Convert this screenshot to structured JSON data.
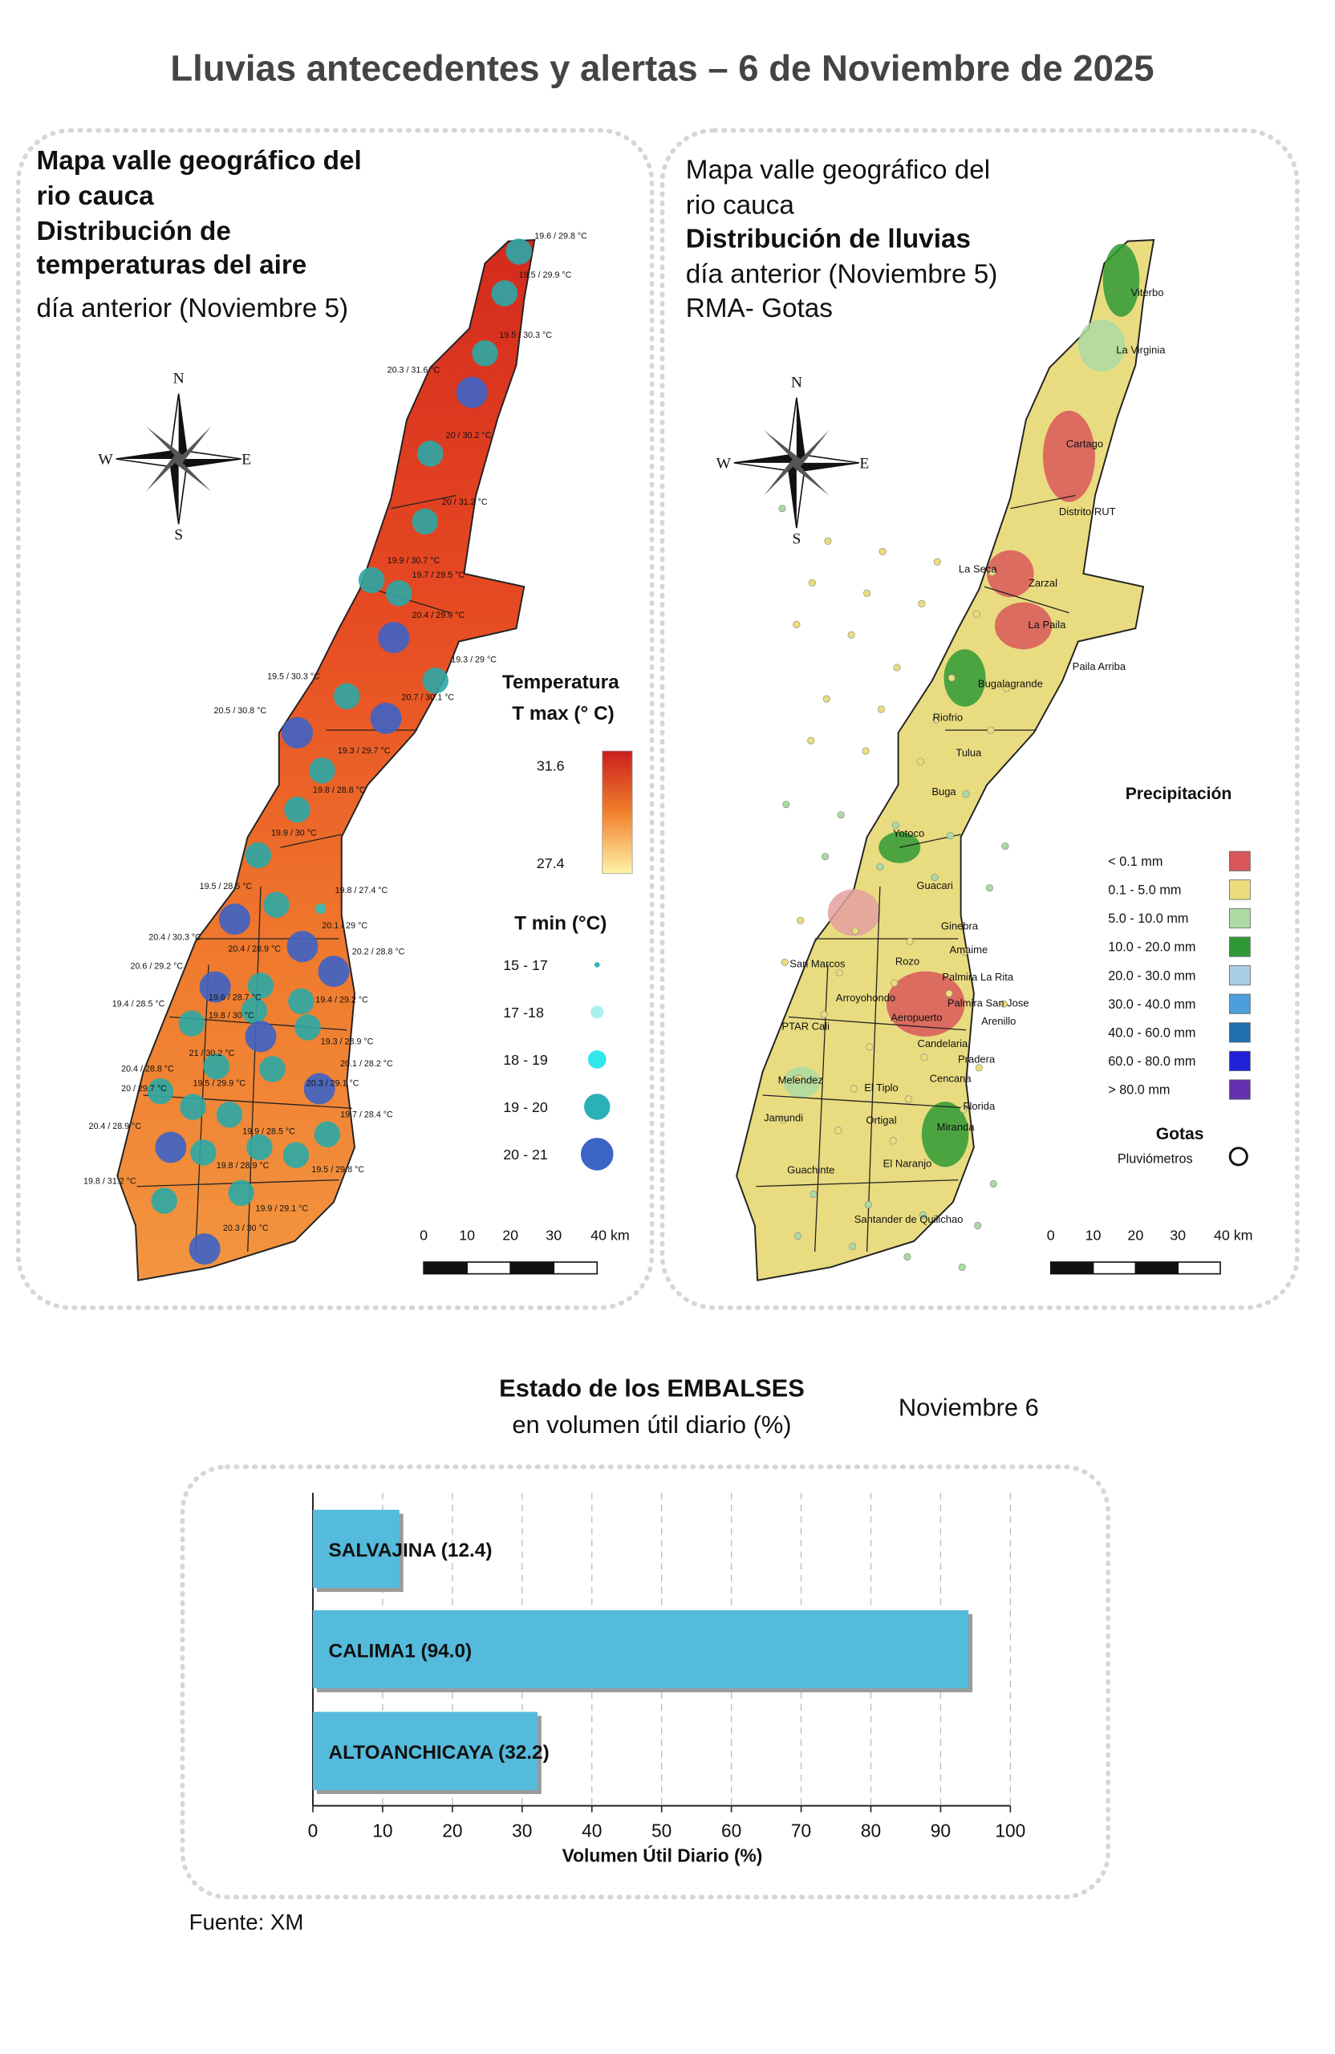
{
  "title": "Lluvias antecedentes y alertas – 6 de Noviembre de 2025",
  "compass": [
    "N",
    "W",
    "E",
    "S"
  ],
  "temperature_map": {
    "heading": [
      "Mapa valle geográfico del",
      "rio cauca",
      "Distribución de",
      "temperaturas del aire"
    ],
    "subheading": "día anterior (Noviembre 5)",
    "tmax_legend": {
      "title": [
        "Temperatura",
        "T max (° C)"
      ],
      "max": 31.6,
      "min": 27.4
    },
    "tmin_legend": {
      "title": "T min (°C)",
      "classes": [
        "15 - 17",
        "17 -18",
        "18 - 19",
        "19 - 20",
        "20 - 21"
      ]
    },
    "scale": {
      "ticks": [
        0,
        10,
        20,
        30
      ],
      "end_label": "40 km"
    },
    "stations": [
      "19.6 / 29.8 °C",
      "19.5 / 29.9 °C",
      "19.5 / 30.3 °C",
      "20.3 / 31.6 °C",
      "20 / 30.2 °C",
      "20 / 31.2 °C",
      "19.9 / 30.7 °C",
      "19.7 / 29.5 °C",
      "20.4 / 29.9 °C",
      "19.3 / 29 °C",
      "19.5 / 30.3 °C",
      "20.7 / 30.1 °C",
      "20.5 / 30.8 °C",
      "19.3 / 29.7 °C",
      "19.8 / 28.8 °C",
      "19.9 / 30 °C",
      "19.5 / 28.5 °C",
      "19.8 / 27.4 °C",
      "20.1 / 29 °C",
      "20.4 / 30.3 °C",
      "20.4 / 28.9 °C",
      "20.2 / 28.8 °C",
      "20.6 / 29.2 °C",
      "19.4 / 28.5 °C",
      "19.6 / 28.7 °C",
      "19.4 / 29.2 °C",
      "19.8 / 30 °C",
      "21 / 30.2 °C",
      "19.3 / 28.9 °C",
      "20.1 / 28.2 °C",
      "20.4 / 28.8 °C",
      "20 / 29.7 °C",
      "19.5 / 29.9 °C",
      "20.3 / 29.1 °C",
      "19.7 / 28.4 °C",
      "20.4 / 28.9 °C",
      "19.9 / 28.5 °C",
      "19.8 / 28.9 °C",
      "19.5 / 29.8 °C",
      "19.8 / 31.2 °C",
      "19.9 / 29.1 °C",
      "20.3 / 30 °C"
    ]
  },
  "rain_map": {
    "heading": [
      "Mapa valle geográfico del",
      "rio cauca",
      "Distribución de lluvias"
    ],
    "subheading": [
      "día anterior (Noviembre 5)",
      "RMA- Gotas"
    ],
    "legend": {
      "title": "Precipitación",
      "classes": [
        "< 0.1 mm",
        "0.1 - 5.0 mm",
        "5.0 - 10.0 mm",
        "10.0 - 20.0 mm",
        "20.0 - 30.0 mm",
        "30.0 - 40.0 mm",
        "40.0 - 60.0 mm",
        "60.0 - 80.0 mm",
        "> 80.0 mm"
      ],
      "colors": [
        "#d9575a",
        "#ecdd7c",
        "#abdba3",
        "#2f9a35",
        "#a9cde6",
        "#4c9fdc",
        "#1f6fae",
        "#2121d8",
        "#6530b0"
      ]
    },
    "gauges": {
      "title": "Gotas",
      "label": "Pluviómetros"
    },
    "scale": {
      "ticks": [
        0,
        10,
        20,
        30
      ],
      "end_label": "40 km"
    },
    "towns": [
      "Viterbo",
      "La Virginia",
      "Cartago",
      "Distrito RUT",
      "La Seca",
      "Zarzal",
      "La Paila",
      "Paila Arriba",
      "Bugalagrande",
      "Riofrio",
      "Tulua",
      "Buga",
      "Yotoco",
      "Guacari",
      "Ginebra",
      "Amaime",
      "San Marcos",
      "Rozo",
      "Palmira La Rita",
      "Arroyohondo",
      "Palmira San Jose",
      "Aeropuerto",
      "Arenillo",
      "PTAR Cali",
      "Candelaria",
      "Pradera",
      "Melendez",
      "El Tiplo",
      "Cencana",
      "Florida",
      "Jamundi",
      "Ortigal",
      "Miranda",
      "El Naranjo",
      "Guachinte",
      "Santander de Quilichao"
    ]
  },
  "chart_data": {
    "type": "hbar",
    "title": "Estado de los EMBALSES",
    "subtitle": "en volumen útil diario (%)",
    "date": "Noviembre 6",
    "values": [
      12.4,
      94.0,
      32.2
    ],
    "value_labels": [
      "SALVAJINA (12.4)",
      "CALIMA1 (94.0)",
      "ALTOANCHICAYA (32.2)"
    ],
    "color": "#55bbdc",
    "xlim": [
      0,
      100
    ],
    "xticks": [
      0,
      10,
      20,
      30,
      40,
      50,
      60,
      70,
      80,
      90,
      100
    ],
    "xlabel": "Volumen Útil Diario (%)",
    "grid": true
  },
  "source": "Fuente: XM"
}
